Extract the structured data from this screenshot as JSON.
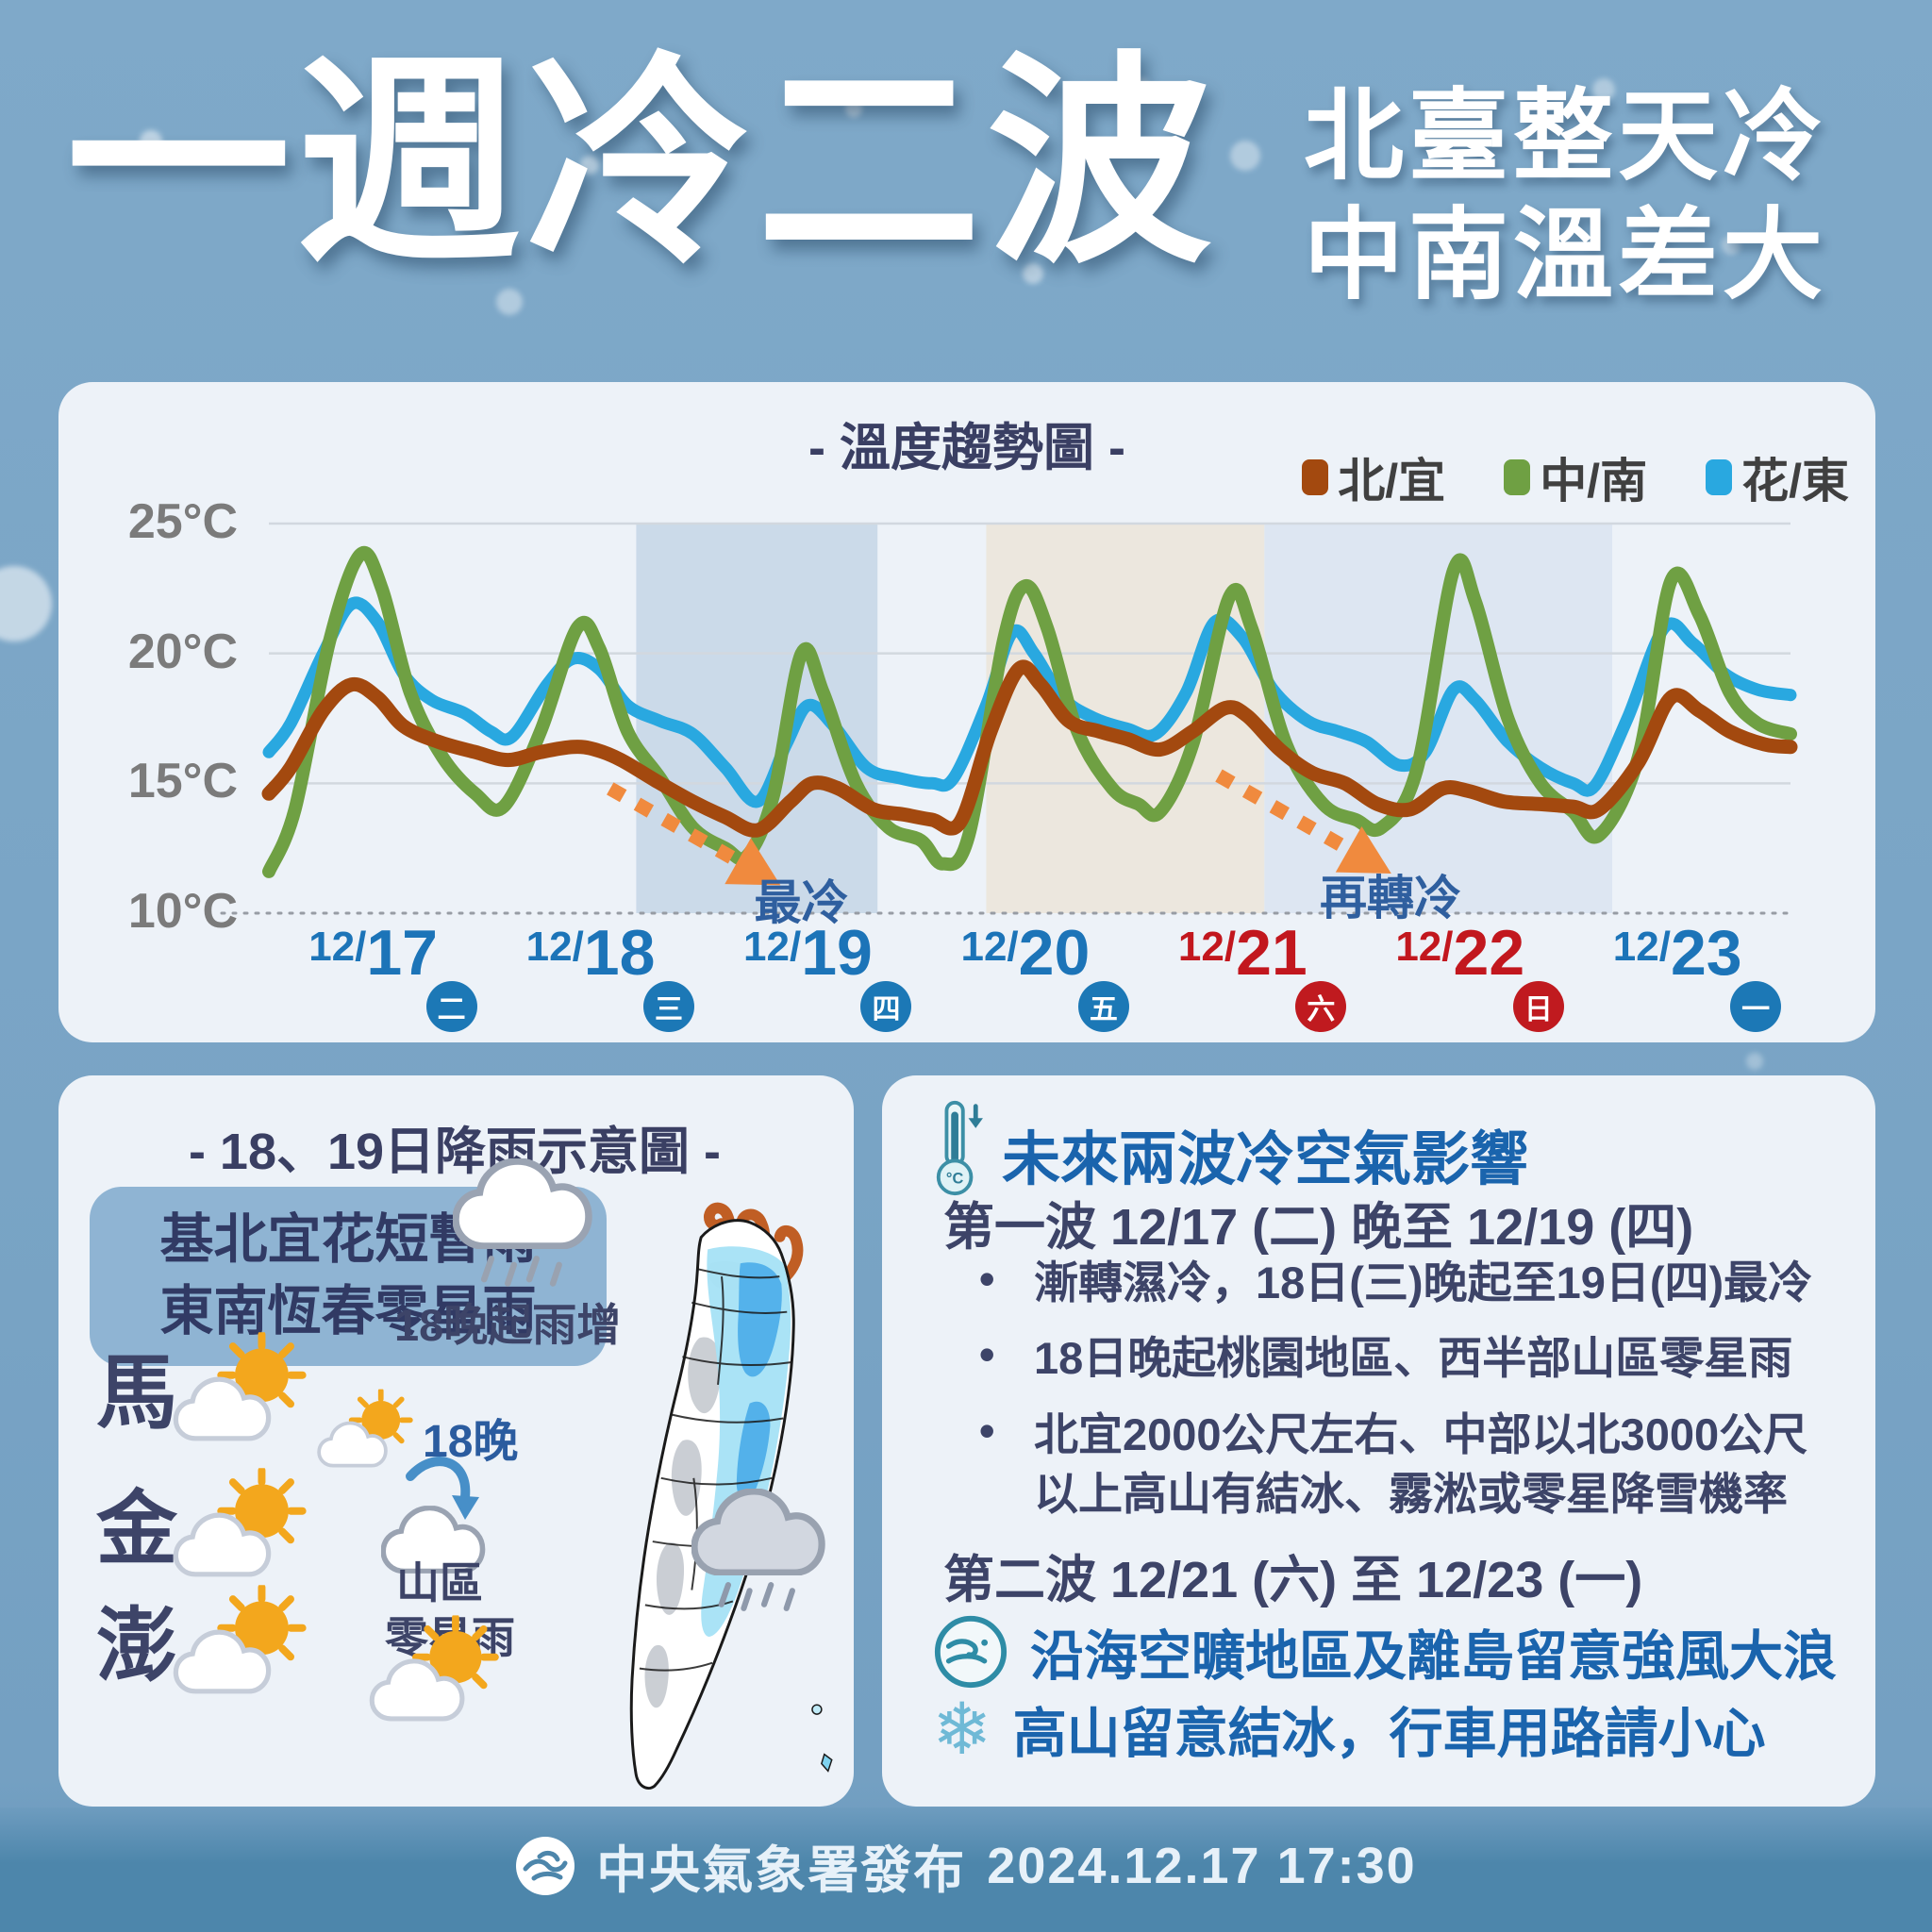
{
  "header": {
    "title": "一週冷二波",
    "subtitle_line1": "北臺整天冷",
    "subtitle_line2": "中南溫差大"
  },
  "trend_panel": {
    "title": "- 溫度趨勢圖 -",
    "legend": [
      {
        "label": "北/宜",
        "color": "#A3490F"
      },
      {
        "label": "中/南",
        "color": "#6FA043"
      },
      {
        "label": "花/東",
        "color": "#29A8E0"
      }
    ]
  },
  "chart_data": {
    "type": "line",
    "title": "溫度趨勢圖",
    "x_unit": "days from 12/17 00:00",
    "xlim": [
      0,
      7
    ],
    "ylim": [
      10,
      25
    ],
    "grid": "horizontal",
    "y_ticks": [
      {
        "value": 25,
        "label": "25°C"
      },
      {
        "value": 20,
        "label": "20°C"
      },
      {
        "value": 15,
        "label": "15°C"
      },
      {
        "value": 10,
        "label": "10°C"
      }
    ],
    "x_categories": [
      {
        "prefix": "12/",
        "day": "17",
        "weekday": "二",
        "text_color": "#1C74B8",
        "badge_color": "#1C78B6"
      },
      {
        "prefix": "12/",
        "day": "18",
        "weekday": "三",
        "text_color": "#1C74B8",
        "badge_color": "#1C78B6"
      },
      {
        "prefix": "12/",
        "day": "19",
        "weekday": "四",
        "text_color": "#1C74B8",
        "badge_color": "#1C78B6"
      },
      {
        "prefix": "12/",
        "day": "20",
        "weekday": "五",
        "text_color": "#1C74B8",
        "badge_color": "#1C78B6"
      },
      {
        "prefix": "12/",
        "day": "21",
        "weekday": "六",
        "text_color": "#C2171E",
        "badge_color": "#C01A1F"
      },
      {
        "prefix": "12/",
        "day": "22",
        "weekday": "日",
        "text_color": "#C2171E",
        "badge_color": "#C01A1F"
      },
      {
        "prefix": "12/",
        "day": "23",
        "weekday": "一",
        "text_color": "#1C74B8",
        "badge_color": "#1C78B6"
      }
    ],
    "series": [
      {
        "name": "北/宜",
        "color": "#A3490F",
        "stroke_width": 15,
        "points": [
          [
            0,
            14.6
          ],
          [
            0.1,
            15.6
          ],
          [
            0.25,
            17.8
          ],
          [
            0.38,
            18.8
          ],
          [
            0.5,
            18.3
          ],
          [
            0.62,
            17.2
          ],
          [
            0.78,
            16.6
          ],
          [
            0.95,
            16.2
          ],
          [
            1.1,
            15.9
          ],
          [
            1.25,
            16.2
          ],
          [
            1.4,
            16.4
          ],
          [
            1.5,
            16.3
          ],
          [
            1.62,
            15.9
          ],
          [
            1.78,
            15.1
          ],
          [
            1.95,
            14.3
          ],
          [
            2.1,
            13.7
          ],
          [
            2.25,
            13.2
          ],
          [
            2.4,
            14.3
          ],
          [
            2.5,
            15.0
          ],
          [
            2.62,
            14.8
          ],
          [
            2.78,
            14.0
          ],
          [
            2.92,
            13.8
          ],
          [
            3.05,
            13.6
          ],
          [
            3.18,
            13.5
          ],
          [
            3.32,
            17.0
          ],
          [
            3.45,
            19.4
          ],
          [
            3.55,
            18.8
          ],
          [
            3.68,
            17.4
          ],
          [
            3.82,
            17.0
          ],
          [
            3.95,
            16.7
          ],
          [
            4.1,
            16.3
          ],
          [
            4.25,
            17.0
          ],
          [
            4.4,
            17.9
          ],
          [
            4.5,
            17.6
          ],
          [
            4.65,
            16.3
          ],
          [
            4.8,
            15.4
          ],
          [
            4.95,
            15.0
          ],
          [
            5.1,
            14.2
          ],
          [
            5.25,
            14.0
          ],
          [
            5.4,
            14.8
          ],
          [
            5.52,
            14.7
          ],
          [
            5.68,
            14.3
          ],
          [
            5.85,
            14.2
          ],
          [
            6.0,
            14.1
          ],
          [
            6.12,
            14.0
          ],
          [
            6.3,
            15.8
          ],
          [
            6.45,
            18.3
          ],
          [
            6.58,
            17.8
          ],
          [
            6.72,
            17.0
          ],
          [
            6.88,
            16.5
          ],
          [
            7,
            16.4
          ]
        ]
      },
      {
        "name": "中/南",
        "color": "#6FA043",
        "stroke_width": 14,
        "points": [
          [
            0,
            11.6
          ],
          [
            0.12,
            14.0
          ],
          [
            0.28,
            20.5
          ],
          [
            0.42,
            23.8
          ],
          [
            0.52,
            22.5
          ],
          [
            0.65,
            18.5
          ],
          [
            0.8,
            16.0
          ],
          [
            0.95,
            14.6
          ],
          [
            1.08,
            14.1
          ],
          [
            1.25,
            17.0
          ],
          [
            1.42,
            21.0
          ],
          [
            1.52,
            20.2
          ],
          [
            1.65,
            17.0
          ],
          [
            1.8,
            15.2
          ],
          [
            1.95,
            13.3
          ],
          [
            2.1,
            12.5
          ],
          [
            2.2,
            12.2
          ],
          [
            2.32,
            14.5
          ],
          [
            2.45,
            20.0
          ],
          [
            2.55,
            18.5
          ],
          [
            2.7,
            15.0
          ],
          [
            2.85,
            13.3
          ],
          [
            3.0,
            12.8
          ],
          [
            3.1,
            11.9
          ],
          [
            3.22,
            13.0
          ],
          [
            3.38,
            20.5
          ],
          [
            3.48,
            22.6
          ],
          [
            3.58,
            21.0
          ],
          [
            3.72,
            17.0
          ],
          [
            3.88,
            14.8
          ],
          [
            4.0,
            14.2
          ],
          [
            4.1,
            13.9
          ],
          [
            4.25,
            16.5
          ],
          [
            4.42,
            22.2
          ],
          [
            4.52,
            21.0
          ],
          [
            4.68,
            16.5
          ],
          [
            4.85,
            14.2
          ],
          [
            5.0,
            13.6
          ],
          [
            5.12,
            13.3
          ],
          [
            5.28,
            15.5
          ],
          [
            5.45,
            23.2
          ],
          [
            5.55,
            22.0
          ],
          [
            5.7,
            17.5
          ],
          [
            5.85,
            15.0
          ],
          [
            6.0,
            13.9
          ],
          [
            6.12,
            13.0
          ],
          [
            6.3,
            16.0
          ],
          [
            6.45,
            22.8
          ],
          [
            6.58,
            21.5
          ],
          [
            6.72,
            18.5
          ],
          [
            6.85,
            17.3
          ],
          [
            7,
            16.9
          ]
        ]
      },
      {
        "name": "花/東",
        "color": "#29A8E0",
        "stroke_width": 13,
        "points": [
          [
            0,
            16.2
          ],
          [
            0.1,
            17.3
          ],
          [
            0.25,
            20.0
          ],
          [
            0.38,
            21.9
          ],
          [
            0.5,
            21.2
          ],
          [
            0.62,
            19.2
          ],
          [
            0.75,
            18.2
          ],
          [
            0.9,
            17.7
          ],
          [
            1.02,
            17.0
          ],
          [
            1.12,
            16.8
          ],
          [
            1.28,
            18.8
          ],
          [
            1.4,
            19.8
          ],
          [
            1.52,
            19.4
          ],
          [
            1.65,
            18.0
          ],
          [
            1.8,
            17.4
          ],
          [
            1.95,
            16.9
          ],
          [
            2.1,
            15.6
          ],
          [
            2.25,
            14.3
          ],
          [
            2.38,
            16.5
          ],
          [
            2.48,
            18.0
          ],
          [
            2.6,
            17.2
          ],
          [
            2.75,
            15.6
          ],
          [
            2.9,
            15.2
          ],
          [
            3.05,
            15.0
          ],
          [
            3.15,
            15.2
          ],
          [
            3.3,
            18.0
          ],
          [
            3.42,
            20.8
          ],
          [
            3.52,
            20.0
          ],
          [
            3.65,
            18.3
          ],
          [
            3.8,
            17.5
          ],
          [
            3.95,
            17.1
          ],
          [
            4.08,
            16.9
          ],
          [
            4.22,
            18.5
          ],
          [
            4.35,
            21.2
          ],
          [
            4.48,
            20.6
          ],
          [
            4.62,
            18.6
          ],
          [
            4.78,
            17.4
          ],
          [
            4.92,
            17.0
          ],
          [
            5.05,
            16.6
          ],
          [
            5.2,
            15.7
          ],
          [
            5.32,
            16.2
          ],
          [
            5.45,
            18.6
          ],
          [
            5.55,
            18.2
          ],
          [
            5.7,
            16.6
          ],
          [
            5.85,
            15.6
          ],
          [
            6.0,
            15.0
          ],
          [
            6.1,
            14.9
          ],
          [
            6.25,
            17.5
          ],
          [
            6.42,
            21.0
          ],
          [
            6.55,
            20.4
          ],
          [
            6.7,
            19.2
          ],
          [
            6.85,
            18.6
          ],
          [
            7,
            18.4
          ]
        ]
      }
    ],
    "regions": [
      {
        "from": 1.69,
        "to": 2.8,
        "color": "#CBDAE9"
      },
      {
        "from": 3.3,
        "to": 4.58,
        "color": "#ECE7DE"
      },
      {
        "from": 4.58,
        "to": 6.18,
        "color": "#DDE6F2"
      }
    ],
    "arrows": [
      {
        "from": [
          1.57,
          14.8
        ],
        "to": [
          2.18,
          11.9
        ],
        "color": "#F08A3E"
      },
      {
        "from": [
          4.37,
          15.3
        ],
        "to": [
          4.99,
          12.35
        ],
        "color": "#F08A3E"
      }
    ],
    "annotations": [
      {
        "text": "最冷",
        "x": 2.45,
        "y": 10.9
      },
      {
        "text": "再轉冷",
        "x": 5.16,
        "y": 11.1
      }
    ],
    "legend_position": "top-right"
  },
  "rain_panel": {
    "title": "- 18、19日降雨示意圖 -",
    "callout_line1": "基北宜花短暫雨",
    "callout_line2": "東南恆春零星雨",
    "label_rain_increase": "18晚起雨增",
    "label_18_night": "18晚",
    "label_mountain_line1": "山區",
    "label_mountain_line2": "零星雨",
    "islands": [
      {
        "name": "馬",
        "weather": "partly-sunny"
      },
      {
        "name": "金",
        "weather": "partly-sunny"
      },
      {
        "name": "澎",
        "weather": "partly-sunny"
      }
    ]
  },
  "info_panel": {
    "header": "未來兩波冷空氣影響",
    "wave1_title": "第一波 12/17 (二) 晚至 12/19 (四)",
    "wave1_bullets": [
      "漸轉濕冷，18日(三)晚起至19日(四)最冷",
      "18日晚起桃園地區、西半部山區零星雨",
      "北宜2000公尺左右、中部以北3000公尺以上高山有結冰、霧淞或零星降雪機率"
    ],
    "wave2_title": "第二波 12/21 (六) 至 12/23 (一)",
    "wave2_items": [
      {
        "icon": "wind-icon",
        "text": "沿海空曠地區及離島留意強風大浪"
      },
      {
        "icon": "snowflake-icon",
        "text": "高山留意結冰，行車用路請小心"
      }
    ]
  },
  "footer": {
    "agency": "中央氣象署發布",
    "datetime": "2024.12.17 17:30"
  }
}
